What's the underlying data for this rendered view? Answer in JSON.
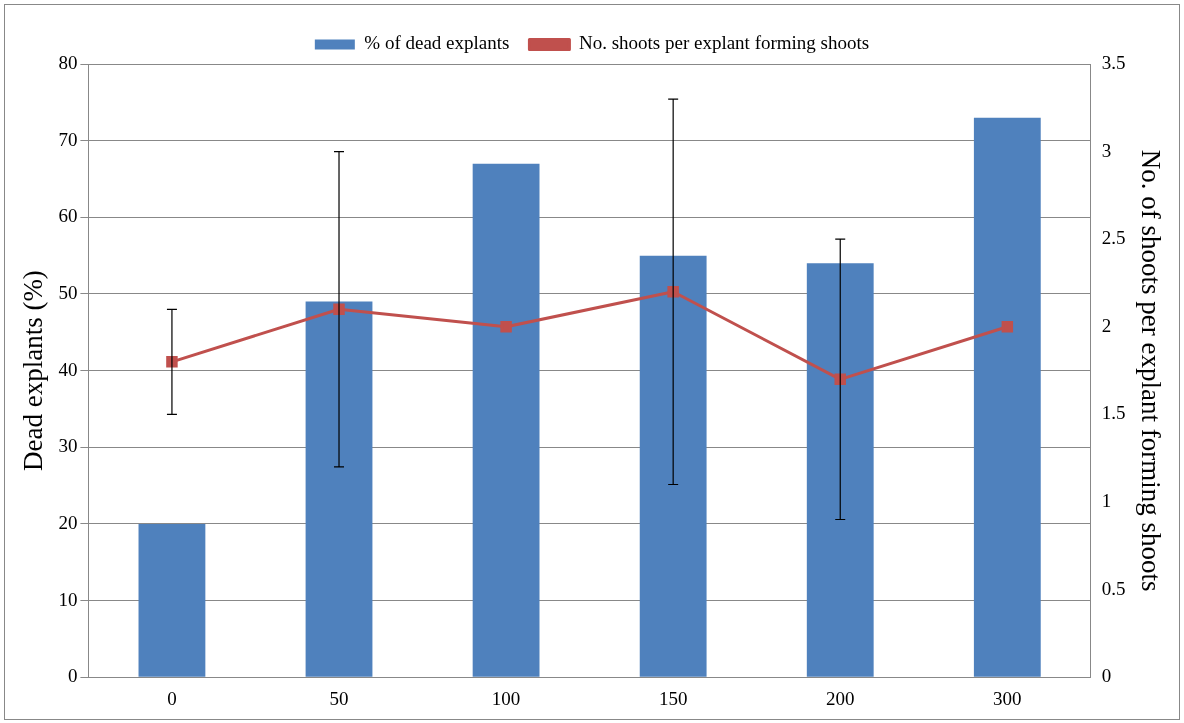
{
  "chart_data": {
    "type": "bar",
    "categories": [
      "0",
      "50",
      "100",
      "150",
      "200",
      "300"
    ],
    "series": [
      {
        "name": "% of dead explants",
        "color": "#4f81bd",
        "values": [
          20,
          49,
          67,
          55,
          54,
          73
        ]
      },
      {
        "name": "No. shoots per explant forming shoots",
        "type": "line",
        "axis": "y2",
        "color": "#c0504d",
        "values": [
          1.8,
          2.1,
          2.0,
          2.2,
          1.7,
          2.0
        ],
        "errors": [
          0.3,
          0.9,
          null,
          1.1,
          0.8,
          null
        ]
      }
    ],
    "ylabel": "Dead explants (%)",
    "y2label": "No. of shoots per explant forming shoots",
    "ylim": [
      0,
      80
    ],
    "yticks": [
      0,
      10,
      20,
      30,
      40,
      50,
      60,
      70,
      80
    ],
    "y2lim": [
      0,
      3.5
    ],
    "y2ticks": [
      0,
      0.5,
      1,
      1.5,
      2,
      2.5,
      3,
      3.5
    ],
    "grid": "y",
    "legend": "top",
    "marker": "square",
    "line_style": "solid"
  }
}
